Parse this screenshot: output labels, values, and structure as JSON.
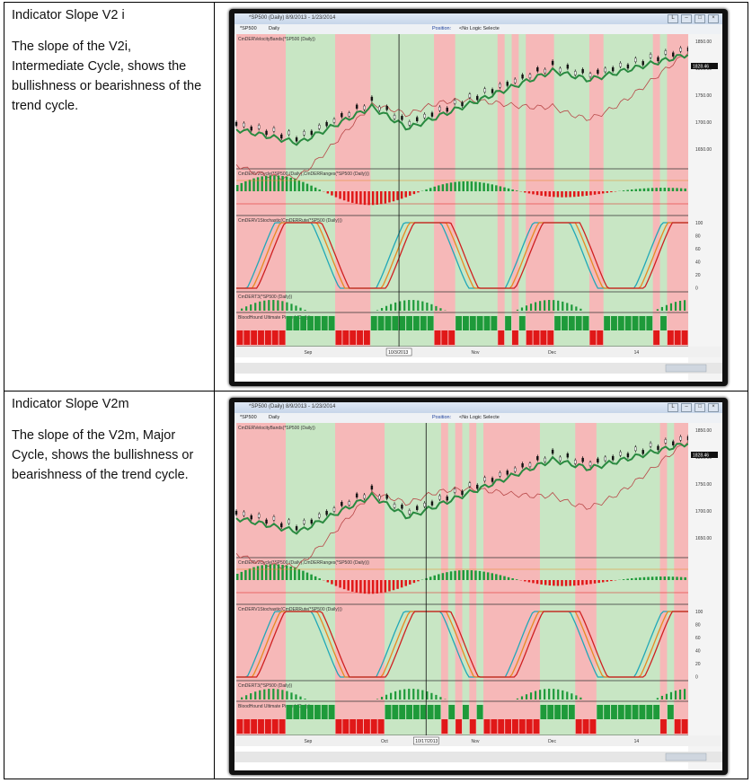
{
  "rows": [
    {
      "heading": "Indicator Slope V2 i",
      "description": "The slope of the V2i, Intermediate Cycle, shows the bullishness or bearishness of the trend cycle.",
      "screenshot": {
        "window_title": "*SP500 (Daily)  8/9/2013 - 1/23/2014",
        "toolbar": {
          "symbol": "*SP500",
          "interval": "Daily",
          "position_label": "Position:",
          "strategy": "<No Logic Selecte"
        },
        "panel_labels": [
          "CmDERVelocityBands(*SP500 (Daily))",
          "CmDERV2Cycle(*SP500 (Daily),CmDERRanges(*SP500 (Daily)))",
          "CmDERV1Stochastic(CmDERRute(*SP500 (Daily)))",
          "CmDERT3(*SP500 (Daily))",
          "BloodHound Ultimate Pinned (Daily)"
        ],
        "price_ticks": [
          "1850.00",
          "1800.00",
          "1750.00",
          "1700.00",
          "1650.00"
        ],
        "last_price": "1828.46",
        "stoch_ticks": [
          "100",
          "80",
          "60",
          "40",
          "20",
          "0"
        ],
        "date_labels": [
          "Sep",
          "Nov",
          "Dec",
          "14"
        ],
        "cursor_date": "10/3/2013"
      },
      "shading": [
        0,
        0,
        0,
        0,
        0,
        0,
        0,
        1,
        1,
        1,
        1,
        1,
        1,
        1,
        0,
        0,
        0,
        0,
        0,
        1,
        1,
        1,
        1,
        1,
        1,
        1,
        1,
        1,
        0,
        0,
        0,
        1,
        1,
        1,
        1,
        1,
        1,
        0,
        1,
        0,
        1,
        0,
        0,
        0,
        0,
        1,
        1,
        1,
        1,
        1,
        0,
        0,
        1,
        1,
        1,
        1,
        1,
        1,
        1,
        0,
        1,
        0,
        0,
        0
      ]
    },
    {
      "heading": "Indicator Slope V2m",
      "description": "The slope of the V2m, Major Cycle, shows the bullishness or bearishness of the trend cycle.",
      "screenshot": {
        "window_title": "*SP500 (Daily)  8/9/2013 - 1/23/2014",
        "toolbar": {
          "symbol": "*SP500",
          "interval": "Daily",
          "position_label": "Position:",
          "strategy": "<No Logic Selecte"
        },
        "panel_labels": [
          "CmDERVelocityBands(*SP500 (Daily))",
          "CmDERV2Cycle(*SP500 (Daily),CmDERRanges(*SP500 (Daily)))",
          "CmDERV1Stochastic(CmDERRute(*SP500 (Daily)))",
          "CmDERT3(*SP500 (Daily))",
          "BloodHound Ultimate Pinned (Daily)"
        ],
        "price_ticks": [
          "1850.00",
          "1800.00",
          "1750.00",
          "1700.00",
          "1650.00"
        ],
        "last_price": "1828.46",
        "stoch_ticks": [
          "100",
          "80",
          "60",
          "40",
          "20",
          "0"
        ],
        "date_labels": [
          "Sep",
          "Oct",
          "Nov",
          "Dec",
          "14"
        ],
        "cursor_date": "10/17/2013"
      },
      "shading": [
        0,
        0,
        0,
        0,
        0,
        0,
        0,
        1,
        1,
        1,
        1,
        1,
        1,
        1,
        0,
        0,
        0,
        0,
        0,
        0,
        0,
        1,
        1,
        1,
        1,
        1,
        1,
        1,
        1,
        0,
        1,
        0,
        1,
        0,
        1,
        0,
        0,
        0,
        0,
        0,
        0,
        0,
        0,
        1,
        1,
        1,
        1,
        1,
        0,
        0,
        0,
        1,
        1,
        1,
        1,
        1,
        1,
        1,
        1,
        1,
        0,
        1,
        0,
        0
      ]
    }
  ],
  "colors": {
    "bull_zone": "#c8e6c4",
    "bear_zone": "#f6b8b8",
    "bull": "#1e9a3a",
    "bear": "#e01818",
    "ma": "#2a8a40",
    "band": "#b84848",
    "stoch_cyan": "#20a8b8",
    "stoch_orange": "#e88a20",
    "stoch_red": "#d02020"
  }
}
